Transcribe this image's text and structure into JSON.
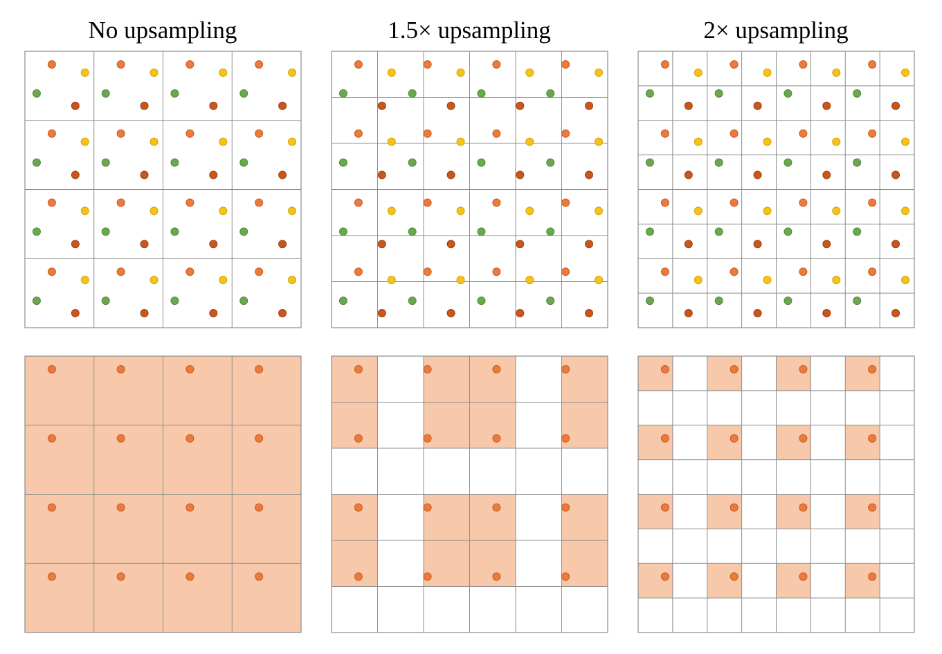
{
  "panels": [
    {
      "title": "No upsampling"
    },
    {
      "title": "1.5× upsampling"
    },
    {
      "title": "2× upsampling"
    }
  ],
  "colors": {
    "orange_point": "#ec7a3e",
    "orange_point_stroke": "#c85a20",
    "yellow_point": "#f6c315",
    "yellow_point_stroke": "#d4a00c",
    "green_point": "#6aa84f",
    "green_point_stroke": "#4f8a38",
    "rust_point": "#c8561d",
    "rust_point_stroke": "#9c4010",
    "cell_fill": "#f7c9aa",
    "grid_line": "#8c8c8c",
    "background": "#ffffff"
  }
}
